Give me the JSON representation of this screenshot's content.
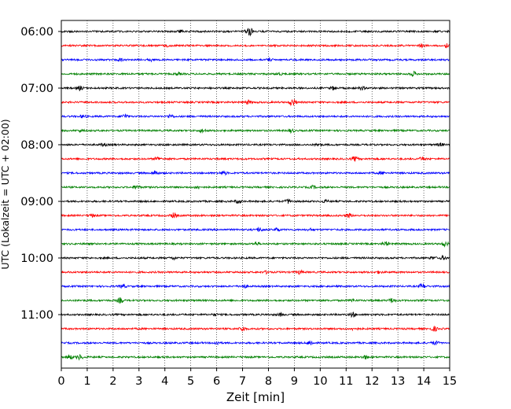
{
  "chart_data": {
    "type": "line",
    "title": "",
    "xlabel": "Zeit  [min]",
    "ylabel": "UTC (Lokalzeit = UTC + 02:00)",
    "xlim": [
      0,
      15
    ],
    "xticks": [
      "0",
      "1",
      "2",
      "3",
      "4",
      "5",
      "6",
      "7",
      "8",
      "9",
      "10",
      "11",
      "12",
      "13",
      "14",
      "15"
    ],
    "yticks": [
      "06:00",
      "07:00",
      "08:00",
      "09:00",
      "10:00",
      "11:00"
    ],
    "trace_start_times": [
      "06:00",
      "06:15",
      "06:30",
      "06:45",
      "07:00",
      "07:15",
      "07:30",
      "07:45",
      "08:00",
      "08:15",
      "08:30",
      "08:45",
      "09:00",
      "09:15",
      "09:30",
      "09:45",
      "10:00",
      "10:15",
      "10:30",
      "10:45",
      "11:00",
      "11:15",
      "11:30",
      "11:45"
    ],
    "trace_colors": [
      "#000000",
      "#ff0000",
      "#0000ff",
      "#008000"
    ],
    "grid": "vertical dotted",
    "legend": "none"
  }
}
